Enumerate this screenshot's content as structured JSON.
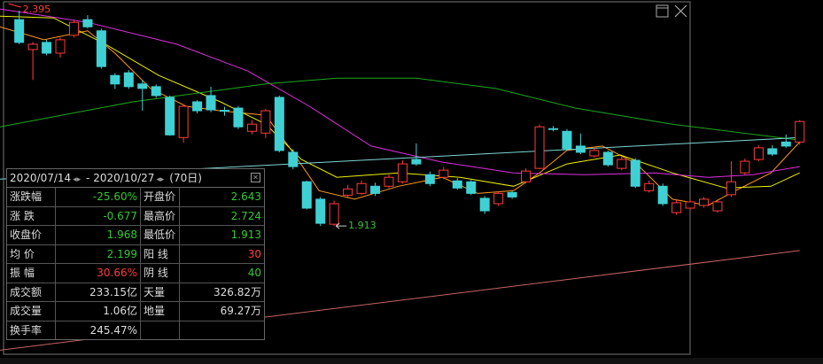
{
  "chart_data": {
    "type": "candlestick",
    "up_color": "#ff3c3c",
    "down_color": "#3fd0d4",
    "xlim": [
      -1.4,
      58.7
    ],
    "ylim": [
      1.604,
      2.419
    ],
    "open": [
      2.375,
      2.308,
      2.324,
      2.3,
      2.34,
      2.375,
      2.35,
      2.25,
      2.256,
      2.231,
      2.225,
      2.201,
      2.111,
      2.191,
      2.205,
      2.172,
      2.177,
      2.125,
      2.121,
      2.201,
      2.078,
      2.012,
      1.973,
      1.917,
      1.982,
      1.986,
      2.002,
      2.002,
      2.012,
      2.062,
      2.028,
      2.022,
      2.014,
      2.012,
      1.975,
      1.963,
      1.988,
      2.012,
      2.042,
      2.131,
      2.125,
      2.092,
      2.07,
      2.078,
      2.042,
      2.06,
      1.992,
      2.002,
      1.943,
      1.953,
      1.959,
      1.947,
      1.983,
      2.032,
      2.062,
      2.086,
      2.101,
      2.101
    ],
    "high": [
      2.395,
      2.325,
      2.33,
      2.335,
      2.375,
      2.385,
      2.355,
      2.255,
      2.262,
      2.24,
      2.23,
      2.205,
      2.185,
      2.195,
      2.225,
      2.18,
      2.181,
      2.15,
      2.175,
      2.205,
      2.085,
      2.015,
      1.978,
      1.97,
      2.005,
      2.015,
      2.01,
      2.028,
      2.06,
      2.098,
      2.035,
      2.045,
      2.02,
      2.016,
      1.98,
      1.99,
      1.992,
      2.042,
      2.14,
      2.137,
      2.13,
      2.12,
      2.088,
      2.082,
      2.068,
      2.065,
      2.015,
      2.008,
      1.972,
      1.972,
      1.978,
      1.972,
      2.058,
      2.064,
      2.094,
      2.094,
      2.118,
      2.15
    ],
    "low": [
      2.32,
      2.24,
      2.295,
      2.29,
      2.335,
      2.355,
      2.265,
      2.22,
      2.22,
      2.171,
      2.2,
      2.115,
      2.1,
      2.165,
      2.168,
      2.16,
      2.13,
      2.118,
      2.11,
      2.078,
      2.04,
      1.95,
      1.913,
      1.913,
      1.975,
      1.982,
      1.98,
      1.998,
      2.008,
      2.048,
      2.002,
      2.018,
      1.994,
      1.982,
      1.94,
      1.958,
      1.974,
      2.008,
      2.04,
      2.125,
      2.082,
      2.074,
      2.066,
      2.046,
      2.038,
      1.998,
      1.988,
      1.958,
      1.938,
      1.948,
      1.954,
      1.943,
      1.978,
      2.028,
      2.058,
      2.07,
      2.088,
      2.095
    ],
    "close": [
      2.324,
      2.32,
      2.3,
      2.33,
      2.369,
      2.359,
      2.27,
      2.231,
      2.225,
      2.221,
      2.205,
      2.117,
      2.181,
      2.171,
      2.173,
      2.17,
      2.135,
      2.141,
      2.171,
      2.082,
      2.046,
      1.953,
      1.919,
      1.963,
      1.996,
      2.008,
      1.986,
      2.022,
      2.052,
      2.052,
      2.008,
      2.038,
      1.998,
      1.986,
      1.947,
      1.986,
      1.978,
      2.036,
      2.135,
      2.129,
      2.086,
      2.078,
      2.082,
      2.05,
      2.062,
      2.002,
      2.008,
      1.963,
      1.965,
      1.967,
      1.973,
      1.967,
      2.012,
      2.058,
      2.088,
      2.074,
      2.092,
      2.147
    ],
    "lines": [
      {
        "color": "#ff9a1e",
        "x": [
          -1.4,
          1.8,
          5.0,
          7.0,
          9.6,
          12.2,
          14.7,
          18.0,
          19.9,
          21.9,
          24.5,
          27.7,
          30.9,
          33.5,
          36.1,
          38.0,
          40.0,
          42.6,
          45.1,
          47.7,
          50.3,
          52.3,
          54.9,
          57.0
        ],
        "values": [
          2.359,
          2.33,
          2.35,
          2.3,
          2.221,
          2.181,
          2.171,
          2.161,
          2.082,
          1.992,
          1.973,
          2.002,
          2.022,
          1.986,
          1.992,
          2.032,
          2.082,
          2.092,
          2.052,
          1.973,
          1.959,
          1.992,
          2.032,
          2.101
        ]
      },
      {
        "color": "#f0f000",
        "x": [
          -1.4,
          2.5,
          6.3,
          10.2,
          14.7,
          18.0,
          20.6,
          23.2,
          27.7,
          32.2,
          36.1,
          40.0,
          43.9,
          47.7,
          51.6,
          54.9,
          57.0
        ],
        "values": [
          2.383,
          2.379,
          2.32,
          2.25,
          2.191,
          2.141,
          2.062,
          2.022,
          2.032,
          2.022,
          2.002,
          2.052,
          2.072,
          2.032,
          1.998,
          2.002,
          2.032
        ]
      },
      {
        "color": "#e030e0",
        "x": [
          -1.4,
          5.0,
          11.5,
          16.7,
          21.2,
          25.7,
          30.9,
          36.1,
          41.3,
          46.4,
          50.3,
          53.6,
          57.0
        ],
        "values": [
          2.399,
          2.369,
          2.32,
          2.26,
          2.181,
          2.092,
          2.056,
          2.032,
          2.028,
          2.032,
          2.022,
          2.028,
          2.046
        ]
      },
      {
        "color": "#1fa81f",
        "x": [
          -1.4,
          8.3,
          18.0,
          23.2,
          29.0,
          34.8,
          40.6,
          47.7,
          56.8
        ],
        "values": [
          2.135,
          2.191,
          2.231,
          2.244,
          2.244,
          2.221,
          2.177,
          2.141,
          2.106
        ]
      },
      {
        "color": "#7fd6d6",
        "x": [
          -1.4,
          57.0
        ],
        "values": [
          2.018,
          2.111
        ]
      },
      {
        "color": "#c86464",
        "x": [
          -1.4,
          57.0
        ],
        "values": [
          1.635,
          1.858
        ]
      }
    ],
    "annotations": [
      {
        "text": "2.395",
        "color": "#ff3c3c",
        "value": 2.395,
        "index": 0
      },
      {
        "text": "1.913",
        "color": "#32c832",
        "value": 1.913,
        "index": 23
      }
    ]
  },
  "summary_table": {
    "header": {
      "start": "2020/07/14",
      "separator": "-",
      "end": "2020/10/27",
      "days": "(70日)"
    },
    "rows": [
      [
        "涨跌幅",
        "-25.60%",
        "开盘价",
        "2.643"
      ],
      [
        "涨 跌",
        "-0.677",
        "最高价",
        "2.724"
      ],
      [
        "收盘价",
        "1.968",
        "最低价",
        "1.913"
      ],
      [
        "均 价",
        "2.199",
        "阳 线",
        "30"
      ],
      [
        "振 幅",
        "30.66%",
        "阴 线",
        "40"
      ],
      [
        "成交额",
        "233.15亿",
        "天量",
        "326.82万"
      ],
      [
        "成交量",
        "1.06亿",
        "地量",
        "69.27万"
      ],
      [
        "换手率",
        "245.47%"
      ]
    ]
  }
}
